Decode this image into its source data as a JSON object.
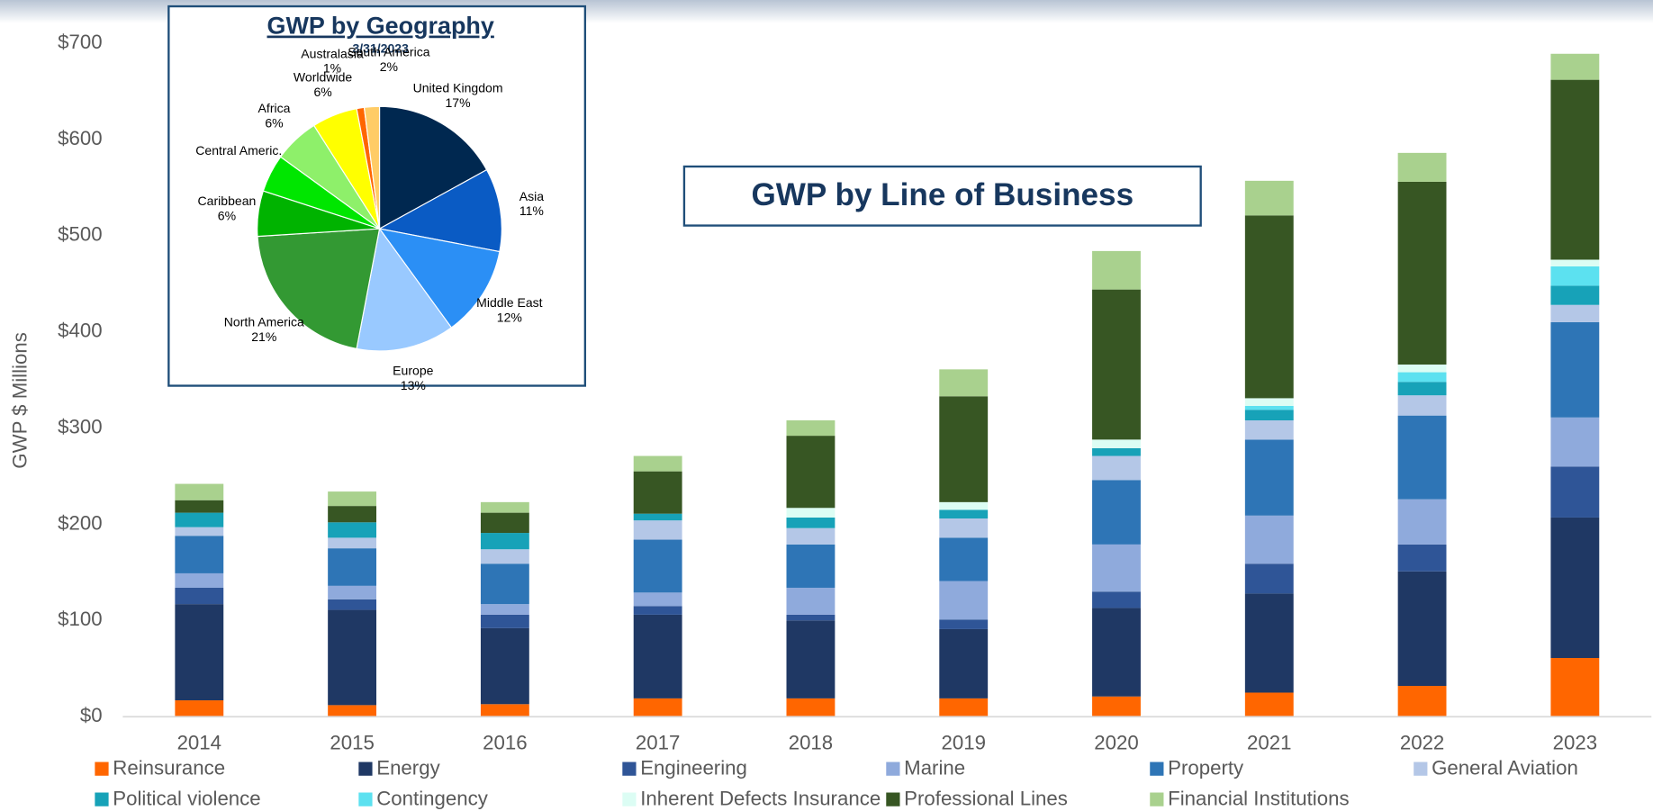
{
  "chart_data": [
    {
      "type": "stacked_bar",
      "title": "GWP by Line of Business",
      "y_label": "GWP $ Millions",
      "categories": [
        "2014",
        "2015",
        "2016",
        "2017",
        "2018",
        "2019",
        "2020",
        "2021",
        "2022",
        "2023"
      ],
      "series": [
        {
          "name": "Reinsurance",
          "color": "#ff6600",
          "values": [
            17,
            12,
            13,
            19,
            19,
            19,
            21,
            25,
            32,
            61
          ]
        },
        {
          "name": "Energy",
          "color": "#1f3864",
          "values": [
            100,
            99,
            79,
            87,
            81,
            72,
            92,
            103,
            119,
            146
          ]
        },
        {
          "name": "Engineering",
          "color": "#2f5597",
          "values": [
            17,
            11,
            14,
            9,
            6,
            10,
            17,
            31,
            28,
            53
          ]
        },
        {
          "name": "Marine",
          "color": "#8faadc",
          "values": [
            15,
            14,
            11,
            14,
            28,
            40,
            49,
            50,
            47,
            51
          ]
        },
        {
          "name": "Property",
          "color": "#2e75b6",
          "values": [
            39,
            39,
            42,
            55,
            45,
            45,
            67,
            79,
            87,
            99
          ]
        },
        {
          "name": "General Aviation",
          "color": "#b4c7e7",
          "values": [
            9,
            11,
            15,
            20,
            17,
            20,
            25,
            20,
            21,
            18
          ]
        },
        {
          "name": "Political violence",
          "color": "#17a2b8",
          "values": [
            15,
            16,
            17,
            7,
            11,
            9,
            8,
            11,
            14,
            20
          ]
        },
        {
          "name": "Contingency",
          "color": "#5ce1f0",
          "values": [
            0,
            0,
            0,
            0,
            0,
            0,
            0,
            4,
            10,
            20
          ]
        },
        {
          "name": "Inherent Defects Insurance",
          "color": "#dcfdf4",
          "values": [
            0,
            0,
            0,
            0,
            10,
            8,
            9,
            8,
            8,
            7
          ]
        },
        {
          "name": "Professional Lines",
          "color": "#375623",
          "values": [
            13,
            17,
            21,
            44,
            75,
            110,
            156,
            190,
            190,
            187
          ]
        },
        {
          "name": "Financial Institutions",
          "color": "#a9d18e",
          "values": [
            17,
            15,
            11,
            16,
            16,
            28,
            40,
            36,
            30,
            27
          ]
        }
      ],
      "ylim": [
        0,
        700
      ],
      "yticks": [
        {
          "value": 0,
          "label": "$0"
        },
        {
          "value": 100,
          "label": "$100"
        },
        {
          "value": 200,
          "label": "$200"
        },
        {
          "value": 300,
          "label": "$300"
        },
        {
          "value": 400,
          "label": "$400"
        },
        {
          "value": 500,
          "label": "$500"
        },
        {
          "value": 600,
          "label": "$600"
        },
        {
          "value": 700,
          "label": "$700"
        }
      ],
      "grid": false,
      "legend": "bottom"
    },
    {
      "type": "pie",
      "title": "GWP by Geography",
      "subtitle": "3/31/2023",
      "labels": [
        "United Kingdom",
        "Asia",
        "Middle East",
        "Europe",
        "North America",
        "Caribbean",
        "Central Americ...",
        "Africa",
        "Worldwide",
        "Australasia",
        "South America"
      ],
      "values": [
        17,
        11,
        12,
        13,
        21,
        6,
        5,
        6,
        6,
        1,
        2
      ],
      "value_labels": [
        "17%",
        "11%",
        "12%",
        "13%",
        "21%",
        "6%",
        null,
        "6%",
        "6%",
        "1%",
        "2%"
      ],
      "colors": [
        "#002850",
        "#0a5bc4",
        "#2b8ff5",
        "#99c9ff",
        "#339933",
        "#00b300",
        "#00e600",
        "#8ef06a",
        "#ffff00",
        "#ff6600",
        "#ffcc66"
      ]
    }
  ]
}
